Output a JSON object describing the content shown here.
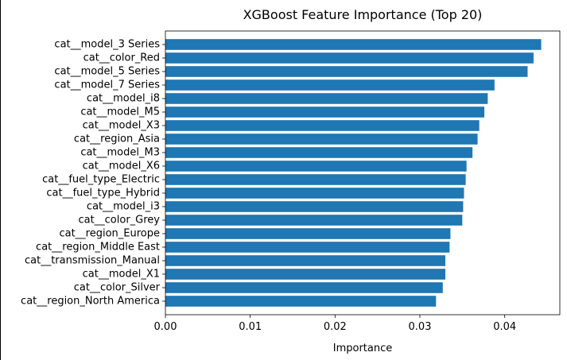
{
  "chart_data": {
    "type": "bar",
    "orientation": "horizontal",
    "title": "XGBoost Feature Importance (Top 20)",
    "xlabel": "Importance",
    "ylabel": "",
    "xlim": [
      0.0,
      0.0465
    ],
    "xticks": [
      0.0,
      0.01,
      0.02,
      0.03,
      0.04
    ],
    "xtick_labels": [
      "0.00",
      "0.01",
      "0.02",
      "0.03",
      "0.04"
    ],
    "grid": false,
    "legend": "none",
    "bar_color": "#1f77b4",
    "categories": [
      "cat__model_3 Series",
      "cat__color_Red",
      "cat__model_5 Series",
      "cat__model_7 Series",
      "cat__model_i8",
      "cat__model_M5",
      "cat__model_X3",
      "cat__region_Asia",
      "cat__model_M3",
      "cat__model_X6",
      "cat__fuel_type_Electric",
      "cat__fuel_type_Hybrid",
      "cat__model_i3",
      "cat__color_Grey",
      "cat__region_Europe",
      "cat__region_Middle East",
      "cat__transmission_Manual",
      "cat__model_X1",
      "cat__color_Silver",
      "cat__region_North America"
    ],
    "values": [
      0.0443,
      0.0434,
      0.0427,
      0.0388,
      0.038,
      0.0376,
      0.037,
      0.0368,
      0.0362,
      0.0355,
      0.0354,
      0.0352,
      0.0351,
      0.035,
      0.0336,
      0.0335,
      0.033,
      0.033,
      0.0327,
      0.0319
    ]
  }
}
